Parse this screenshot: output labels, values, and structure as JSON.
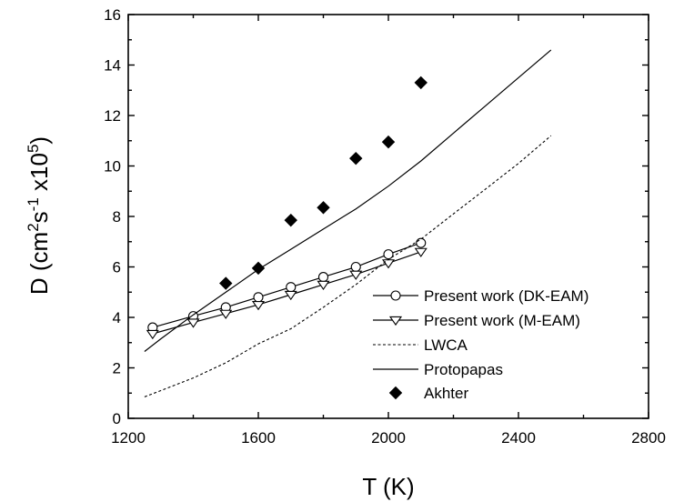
{
  "chart_data": {
    "type": "scatter",
    "xlabel": "T (K)",
    "ylabel": {
      "parts": [
        "D (cm",
        "2",
        "s",
        "-1",
        " x10",
        "5",
        ")"
      ]
    },
    "xlim": [
      1200,
      2800
    ],
    "ylim": [
      0,
      16
    ],
    "xticks": [
      1200,
      1600,
      2000,
      2400,
      2800
    ],
    "yticks": [
      0,
      2,
      4,
      6,
      8,
      10,
      12,
      14,
      16
    ],
    "grid": false,
    "legend_position": "lower-right",
    "series": [
      {
        "name": "Present work (DK-EAM)",
        "style": "line+markers",
        "marker": "circle-open",
        "line": "solid",
        "x": [
          1275,
          1400,
          1500,
          1600,
          1700,
          1800,
          1900,
          2000,
          2100
        ],
        "y": [
          3.6,
          4.05,
          4.4,
          4.8,
          5.2,
          5.6,
          6.0,
          6.5,
          6.95
        ]
      },
      {
        "name": "Present work (M-EAM)",
        "style": "line+markers",
        "marker": "triangle-down-open",
        "line": "solid",
        "x": [
          1275,
          1400,
          1500,
          1600,
          1700,
          1800,
          1900,
          2000,
          2100
        ],
        "y": [
          3.35,
          3.8,
          4.15,
          4.5,
          4.9,
          5.3,
          5.7,
          6.15,
          6.6
        ]
      },
      {
        "name": "LWCA",
        "style": "line",
        "line": "dashed",
        "x": [
          1250,
          1300,
          1400,
          1500,
          1600,
          1700,
          1800,
          1900,
          2000,
          2100,
          2200,
          2300,
          2400,
          2500
        ],
        "y": [
          0.85,
          1.1,
          1.6,
          2.2,
          2.95,
          3.55,
          4.4,
          5.3,
          6.3,
          7.1,
          8.1,
          9.1,
          10.1,
          11.2
        ]
      },
      {
        "name": "Protopapas",
        "style": "line",
        "line": "solid",
        "x": [
          1250,
          1300,
          1400,
          1500,
          1600,
          1700,
          1800,
          1900,
          2000,
          2100,
          2200,
          2300,
          2400,
          2500
        ],
        "y": [
          2.65,
          3.15,
          4.1,
          5.0,
          5.9,
          6.7,
          7.5,
          8.3,
          9.2,
          10.2,
          11.3,
          12.4,
          13.5,
          14.6
        ]
      },
      {
        "name": "Akhter",
        "style": "markers",
        "marker": "diamond-filled",
        "x": [
          1500,
          1600,
          1700,
          1800,
          1900,
          2000,
          2100
        ],
        "y": [
          5.35,
          5.95,
          7.85,
          8.35,
          10.3,
          10.95,
          13.3
        ]
      }
    ]
  }
}
